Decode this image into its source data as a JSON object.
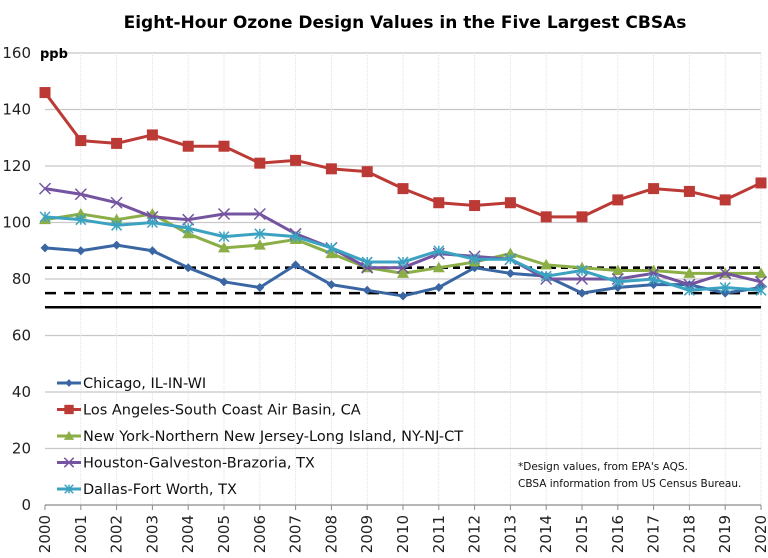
{
  "chart_data": {
    "type": "line",
    "title": "Eight-Hour Ozone Design Values in the Five Largest CBSAs",
    "xlabel": "",
    "ylabel": "ppb",
    "unit_label": "ppb",
    "ylim": [
      0,
      160
    ],
    "yticks": [
      0,
      20,
      40,
      60,
      80,
      100,
      120,
      140,
      160
    ],
    "grid": true,
    "legend_position": "bottom-left",
    "x": [
      2000,
      2001,
      2002,
      2003,
      2004,
      2005,
      2006,
      2007,
      2008,
      2009,
      2010,
      2011,
      2012,
      2013,
      2014,
      2015,
      2016,
      2017,
      2018,
      2019,
      2020
    ],
    "series": [
      {
        "name": "Chicago, IL-IN-WI",
        "color": "#3A67A3",
        "marker": "diamond",
        "values": [
          91,
          90,
          92,
          90,
          84,
          79,
          77,
          85,
          78,
          76,
          74,
          77,
          84,
          82,
          81,
          75,
          77,
          78,
          78,
          75,
          77
        ]
      },
      {
        "name": "Los Angeles-South Coast Air Basin, CA",
        "color": "#BC3A36",
        "marker": "square",
        "values": [
          146,
          129,
          128,
          131,
          127,
          127,
          121,
          122,
          119,
          118,
          112,
          107,
          106,
          107,
          102,
          102,
          108,
          112,
          111,
          108,
          114
        ]
      },
      {
        "name": "New York-Northern New Jersey-Long Island, NY-NJ-CT",
        "color": "#8BAE47",
        "marker": "triangle",
        "values": [
          101,
          103,
          101,
          103,
          96,
          91,
          92,
          94,
          89,
          84,
          82,
          84,
          86,
          89,
          85,
          84,
          83,
          83,
          82,
          82,
          82
        ]
      },
      {
        "name": "Houston-Galveston-Brazoria, TX",
        "color": "#7454A0",
        "marker": "x",
        "values": [
          112,
          110,
          107,
          102,
          101,
          103,
          103,
          96,
          91,
          84,
          84,
          89,
          88,
          87,
          80,
          80,
          80,
          82,
          78,
          82,
          79
        ]
      },
      {
        "name": "Dallas-Fort Worth, TX",
        "color": "#3BA3C1",
        "marker": "star",
        "values": [
          102,
          101,
          99,
          100,
          98,
          95,
          96,
          95,
          91,
          86,
          86,
          90,
          87,
          87,
          81,
          83,
          79,
          80,
          76,
          77,
          76
        ]
      }
    ],
    "reference_lines": [
      {
        "value": 84,
        "style": "dashed-short",
        "color": "#000000"
      },
      {
        "value": 75,
        "style": "dashed-long",
        "color": "#000000"
      },
      {
        "value": 70,
        "style": "solid",
        "color": "#000000"
      }
    ],
    "annotation": [
      "*Design values, from EPA's AQS.",
      "CBSA information from US Census Bureau."
    ]
  }
}
